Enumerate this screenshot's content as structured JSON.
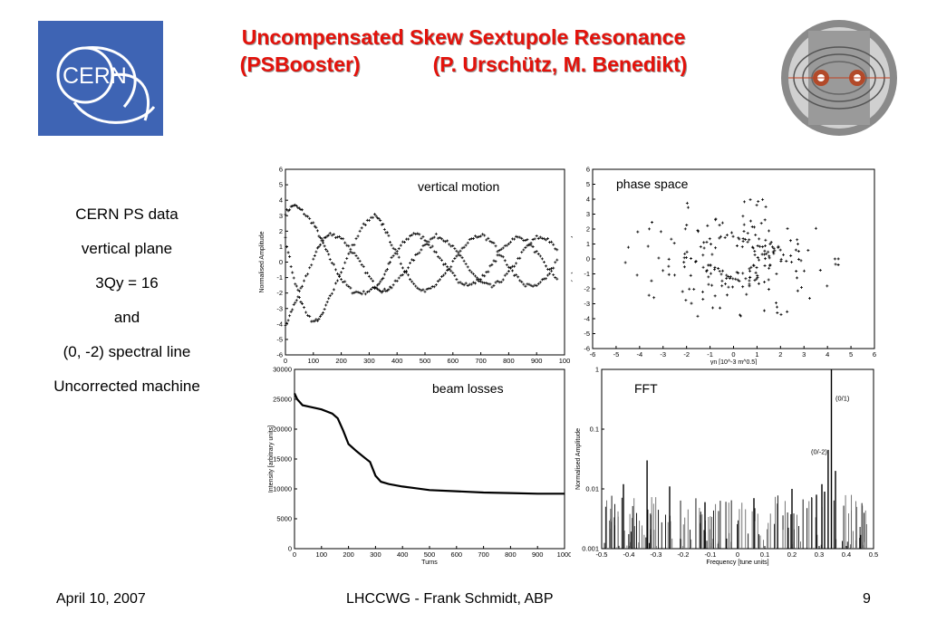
{
  "title": {
    "line1": "Uncompensated Skew Sextupole Resonance",
    "line2_left": "(PSBooster)",
    "line2_right": "(P. Urschütz, M. Benedikt)"
  },
  "logo": {
    "text": "CERN"
  },
  "left_text": [
    "CERN PS data",
    "vertical plane",
    "3Qy = 16",
    "and",
    "(0, -2) spectral line",
    "Uncorrected machine"
  ],
  "footer": {
    "date": "April 10, 2007",
    "center": "LHCCWG - Frank Schmidt, ABP",
    "page": "9"
  },
  "chart_data": [
    {
      "type": "scatter",
      "label": "vertical motion",
      "xlabel": "Turns",
      "ylabel": "Normalised Amplitude",
      "xlim": [
        0,
        100
      ],
      "ylim": [
        -6,
        6
      ],
      "xticks": [
        "0",
        "10",
        "20",
        "30",
        "40",
        "50",
        "60",
        "70",
        "80",
        "90",
        "100"
      ],
      "xtick_display": [
        "0",
        "100",
        "200",
        "300",
        "400",
        "500",
        "600",
        "700",
        "800",
        "900",
        "100"
      ],
      "yticks": [
        "6",
        "5",
        "4",
        "3",
        "2",
        "1",
        "0",
        "-1",
        "-2",
        "-3",
        "-4",
        "-5",
        "-6"
      ],
      "series": [
        {
          "x": [
            0,
            3,
            6,
            10,
            13,
            16,
            20,
            24,
            28,
            32,
            35,
            38,
            42,
            46,
            50,
            54,
            58,
            62,
            66,
            70,
            74,
            78,
            82,
            86,
            90,
            94,
            98
          ],
          "y": [
            3.2,
            3.7,
            3.3,
            2.5,
            1.4,
            0.2,
            -1.1,
            -1.9,
            -2.0,
            -1.7,
            -1.0,
            0.2,
            1.2,
            1.9,
            1.5,
            0.6,
            -0.4,
            -1.2,
            -1.5,
            -1.1,
            -0.2,
            0.9,
            1.6,
            1.5,
            0.6,
            -0.4,
            -1.2
          ]
        },
        {
          "x": [
            0,
            3,
            6,
            10,
            13,
            16,
            20,
            24,
            28,
            32,
            35,
            38,
            42,
            46,
            50,
            54,
            58,
            62,
            66,
            70,
            74,
            78,
            82,
            86,
            90,
            94,
            98
          ],
          "y": [
            -4.2,
            -2.8,
            -1.6,
            0.2,
            1.4,
            1.8,
            1.6,
            0.7,
            -0.4,
            -1.5,
            -1.9,
            -1.6,
            -0.8,
            0.2,
            1.2,
            1.7,
            1.4,
            0.5,
            -0.5,
            -1.3,
            -1.6,
            -1.1,
            -0.2,
            0.9,
            1.6,
            1.5,
            0.6
          ]
        },
        {
          "x": [
            0,
            3,
            6,
            10,
            13,
            16,
            20,
            24,
            28,
            32,
            35,
            38,
            42,
            46,
            50,
            54,
            58,
            62,
            66,
            70,
            74,
            78,
            82,
            86,
            90,
            94,
            98
          ],
          "y": [
            1.5,
            -1.0,
            -2.8,
            -3.9,
            -3.5,
            -2.2,
            -0.6,
            1.0,
            2.4,
            3.0,
            2.4,
            1.2,
            -0.3,
            -1.4,
            -1.9,
            -1.5,
            -0.6,
            0.6,
            1.5,
            1.8,
            1.3,
            0.3,
            -0.8,
            -1.5,
            -1.6,
            -0.9,
            0.3
          ]
        }
      ]
    },
    {
      "type": "scatter",
      "label": "phase space",
      "xlabel": "yn [10^-3 m^0.5]",
      "ylabel": "yn'[10^-3 m^0.5]",
      "xlim": [
        -6,
        6
      ],
      "ylim": [
        -6,
        6
      ],
      "xticks": [
        "-6",
        "-5",
        "-4",
        "-3",
        "-2",
        "-1",
        "0",
        "1",
        "2",
        "3",
        "4",
        "5",
        "6"
      ],
      "yticks": [
        "6",
        "5",
        "4",
        "3",
        "2",
        "1",
        "0",
        "-1",
        "-2",
        "-3",
        "-4",
        "-5",
        "-6"
      ],
      "rings": [
        {
          "r": 3.9,
          "n": 42,
          "jitter": 0.5
        },
        {
          "r": 2.7,
          "n": 48,
          "jitter": 0.4
        },
        {
          "r": 1.8,
          "n": 70,
          "jitter": 0.35
        },
        {
          "r": 1.2,
          "n": 60,
          "jitter": 0.3
        }
      ]
    },
    {
      "type": "line",
      "label": "beam losses",
      "xlabel": "Turns",
      "ylabel": "Intensity [arbitrary units]",
      "xlim": [
        0,
        1000
      ],
      "ylim": [
        0,
        30000
      ],
      "xticks": [
        "0",
        "100",
        "200",
        "300",
        "400",
        "500",
        "600",
        "700",
        "800",
        "900",
        "1000"
      ],
      "yticks": [
        "30000",
        "25000",
        "20000",
        "15000",
        "10000",
        "5000",
        "0"
      ],
      "x": [
        0,
        10,
        30,
        60,
        100,
        140,
        160,
        180,
        200,
        230,
        260,
        280,
        300,
        320,
        350,
        400,
        450,
        500,
        600,
        700,
        800,
        900,
        1000
      ],
      "y": [
        26000,
        25000,
        24000,
        23700,
        23300,
        22600,
        21800,
        19800,
        17500,
        16300,
        15200,
        14500,
        12200,
        11200,
        10800,
        10400,
        10100,
        9800,
        9600,
        9400,
        9300,
        9200,
        9200
      ]
    },
    {
      "type": "bar",
      "label": "FFT",
      "xlabel": "Frequency [tune units]",
      "ylabel": "Normalised Amplitude",
      "xlim": [
        -0.5,
        0.5
      ],
      "ylim": [
        0.001,
        1
      ],
      "yscale": "log",
      "xticks": [
        "-0.5",
        "-0.4",
        "-0.3",
        "-0.2",
        "-0.1",
        "0",
        "0.1",
        "0.2",
        "0.3",
        "0.4",
        "0.5"
      ],
      "yticks": [
        "1",
        "0.1",
        "0.01",
        "0.001"
      ],
      "annotations": [
        "(0/1)",
        "(0/-2)"
      ],
      "peaks": [
        {
          "x": 0.345,
          "y": 1.0
        },
        {
          "x": 0.333,
          "y": 0.045
        },
        {
          "x": -0.333,
          "y": 0.03
        },
        {
          "x": 0.31,
          "y": 0.012
        },
        {
          "x": -0.42,
          "y": 0.012
        },
        {
          "x": -0.25,
          "y": 0.011
        },
        {
          "x": 0.2,
          "y": 0.01
        },
        {
          "x": 0.36,
          "y": 0.02
        },
        {
          "x": 0.32,
          "y": 0.009
        },
        {
          "x": 0.29,
          "y": 0.008
        },
        {
          "x": -0.12,
          "y": 0.006
        },
        {
          "x": 0.06,
          "y": 0.007
        }
      ]
    }
  ]
}
